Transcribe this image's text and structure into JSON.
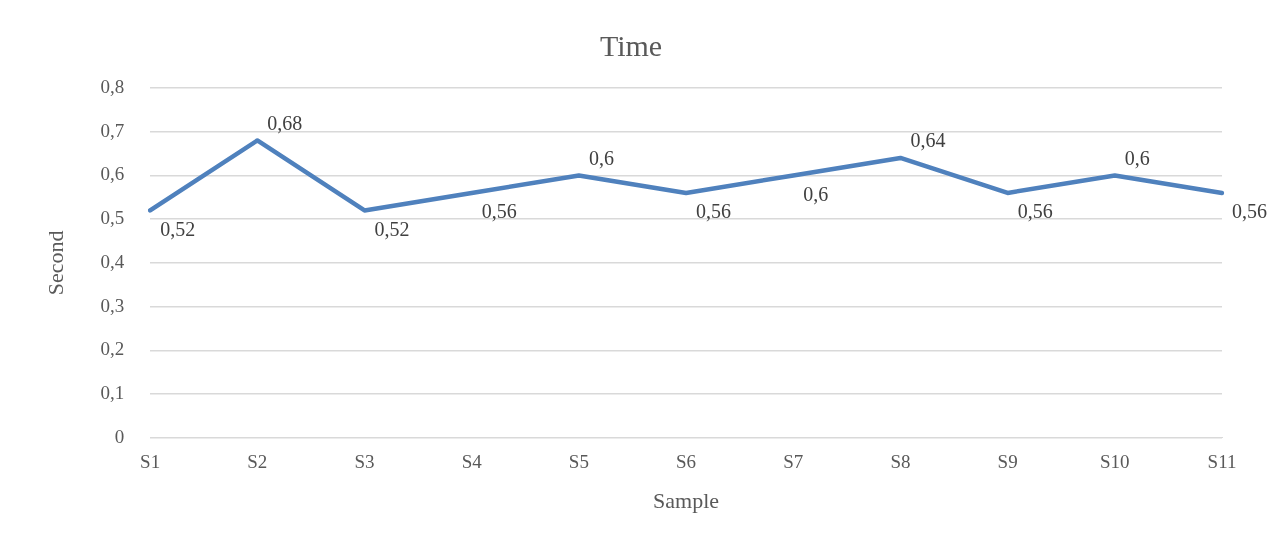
{
  "chart_data": {
    "type": "line",
    "title": "Time",
    "xlabel": "Sample",
    "ylabel": "Second",
    "categories": [
      "S1",
      "S2",
      "S3",
      "S4",
      "S5",
      "S6",
      "S7",
      "S8",
      "S9",
      "S10",
      "S11"
    ],
    "series": [
      {
        "color": "#4f81bd",
        "values": [
          0.52,
          0.68,
          0.52,
          0.56,
          0.6,
          0.56,
          0.6,
          0.64,
          0.56,
          0.6,
          0.56
        ],
        "value_labels": [
          "0,52",
          "0,68",
          "0,52",
          "0,56",
          "0,6",
          "0,56",
          "0,6",
          "0,64",
          "0,56",
          "0,6",
          "0,56"
        ]
      }
    ],
    "ylim": [
      0,
      0.8
    ],
    "yticks": [
      {
        "value": 0,
        "label": "0"
      },
      {
        "value": 0.1,
        "label": "0,1"
      },
      {
        "value": 0.2,
        "label": "0,2"
      },
      {
        "value": 0.3,
        "label": "0,3"
      },
      {
        "value": 0.4,
        "label": "0,4"
      },
      {
        "value": 0.5,
        "label": "0,5"
      },
      {
        "value": 0.6,
        "label": "0,6"
      },
      {
        "value": 0.7,
        "label": "0,7"
      },
      {
        "value": 0.8,
        "label": "0,8"
      }
    ],
    "grid": "y",
    "legend": false,
    "marker": "none",
    "line_style": "solid"
  }
}
